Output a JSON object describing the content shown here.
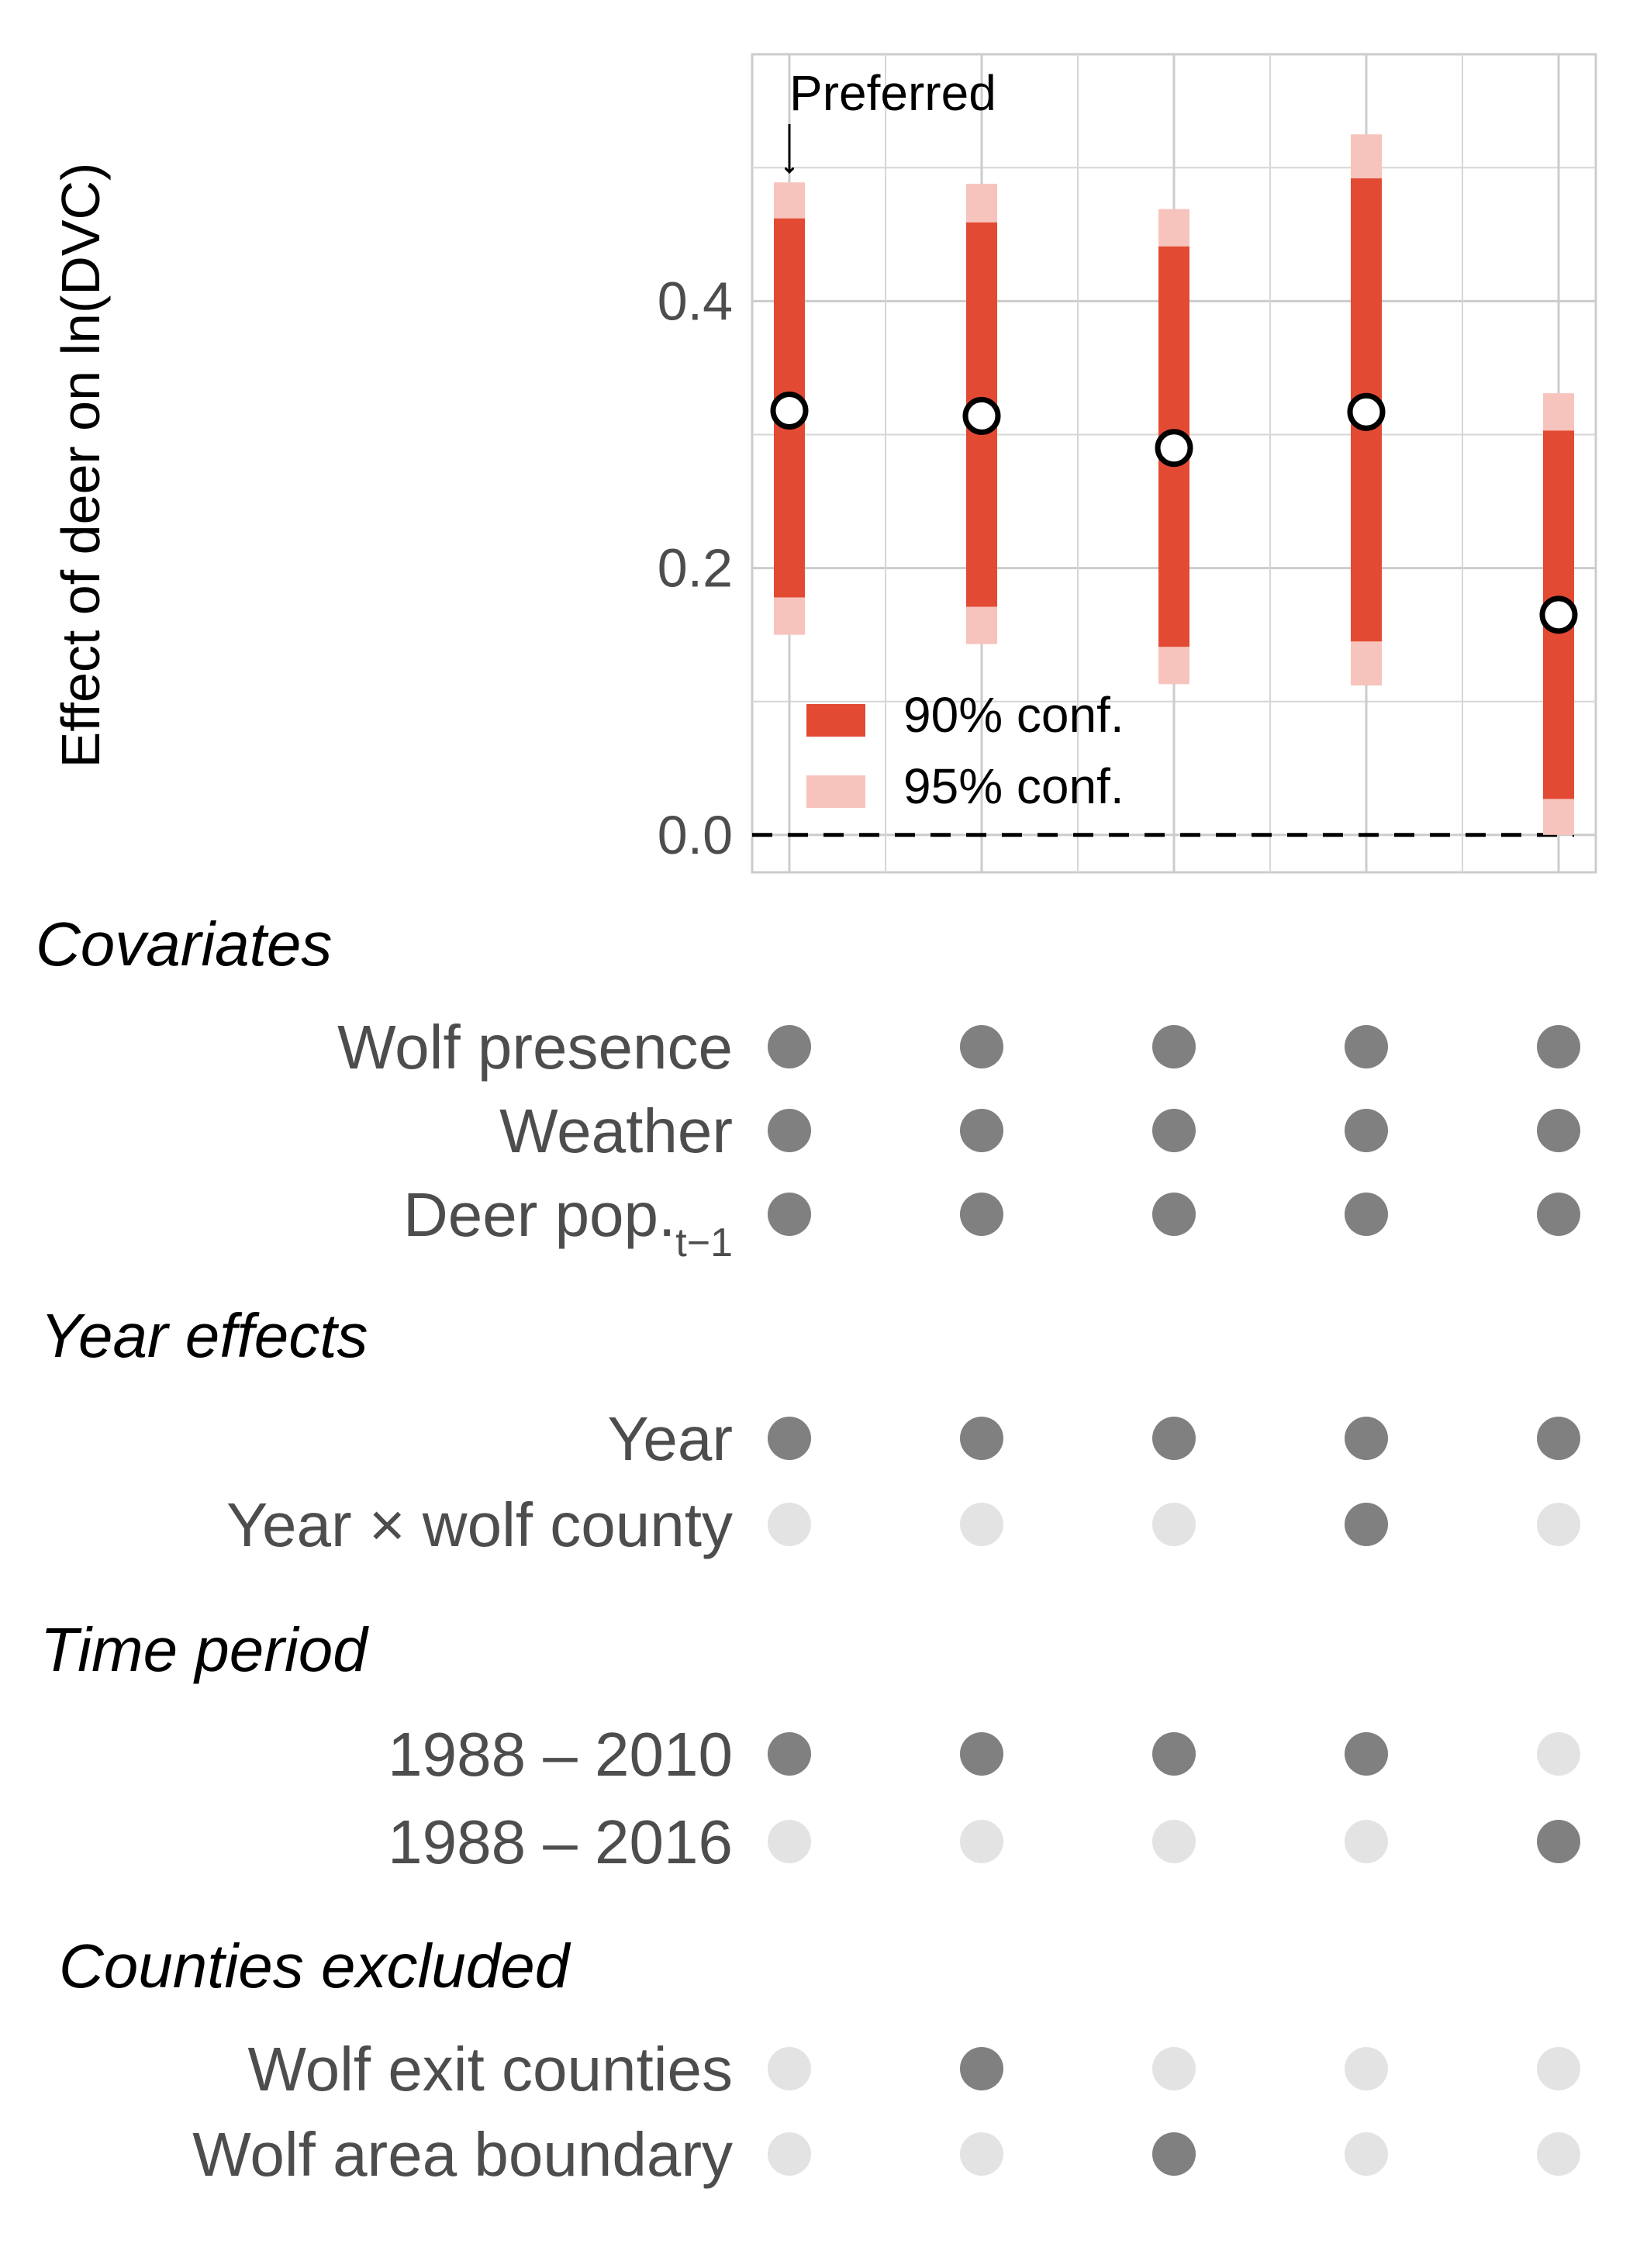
{
  "chart_data": {
    "type": "interval",
    "ylabel": "Effect of deer on ln(DVC)",
    "yticks": [
      0.0,
      0.2,
      0.4
    ],
    "ytick_labels": [
      "0.0",
      "0.2",
      "0.4"
    ],
    "ylim": [
      -0.028,
      0.585
    ],
    "grid": true,
    "reference_line": 0.0,
    "annotation": "Preferred",
    "legend": {
      "placement": "inside-bottom-left",
      "entries": [
        {
          "label": "90% conf.",
          "color": "#e34a33"
        },
        {
          "label": "95% conf.",
          "color": "#f7c4bd"
        }
      ]
    },
    "models": [
      {
        "estimate": 0.318,
        "ci90": [
          0.178,
          0.462
        ],
        "ci95": [
          0.15,
          0.489
        ]
      },
      {
        "estimate": 0.314,
        "ci90": [
          0.171,
          0.459
        ],
        "ci95": [
          0.143,
          0.488
        ]
      },
      {
        "estimate": 0.29,
        "ci90": [
          0.141,
          0.441
        ],
        "ci95": [
          0.113,
          0.469
        ]
      },
      {
        "estimate": 0.317,
        "ci90": [
          0.145,
          0.492
        ],
        "ci95": [
          0.112,
          0.525
        ]
      },
      {
        "estimate": 0.165,
        "ci90": [
          0.027,
          0.303
        ],
        "ci95": [
          0.0,
          0.331
        ]
      }
    ]
  },
  "spec_table": {
    "colors": {
      "included": "#808080",
      "excluded": "#e3e3e3"
    },
    "groups": [
      {
        "title": "Covariates",
        "rows": [
          {
            "label": "Wolf presence",
            "values": [
              1,
              1,
              1,
              1,
              1
            ]
          },
          {
            "label": "Weather",
            "values": [
              1,
              1,
              1,
              1,
              1
            ]
          },
          {
            "label": "Deer pop.",
            "sub": "t−1",
            "values": [
              1,
              1,
              1,
              1,
              1
            ]
          }
        ]
      },
      {
        "title": "Year effects",
        "rows": [
          {
            "label": "Year",
            "values": [
              1,
              1,
              1,
              1,
              1
            ]
          },
          {
            "label": "Year × wolf county",
            "values": [
              0,
              0,
              0,
              1,
              0
            ]
          }
        ]
      },
      {
        "title": "Time period",
        "rows": [
          {
            "label": "1988 – 2010",
            "values": [
              1,
              1,
              1,
              1,
              0
            ]
          },
          {
            "label": "1988 – 2016",
            "values": [
              0,
              0,
              0,
              0,
              1
            ]
          }
        ]
      },
      {
        "title": "Counties excluded",
        "rows": [
          {
            "label": "Wolf exit counties",
            "values": [
              0,
              1,
              0,
              0,
              0
            ]
          },
          {
            "label": "Wolf area boundary",
            "values": [
              0,
              0,
              1,
              0,
              0
            ]
          }
        ]
      }
    ]
  }
}
